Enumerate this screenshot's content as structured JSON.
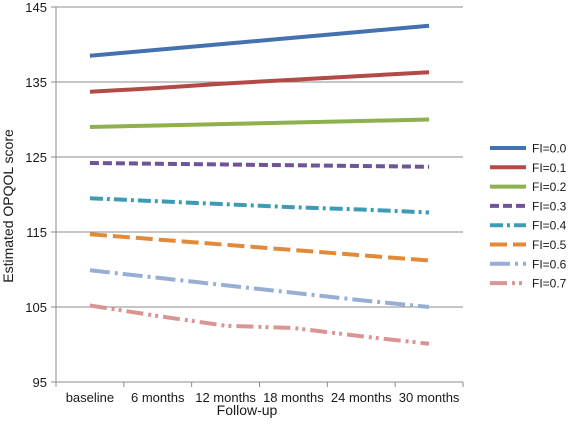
{
  "chart_data": {
    "type": "line",
    "title": "",
    "xlabel": "Follow-up",
    "ylabel": "Estimated OPQOL score",
    "categories": [
      "baseline",
      "6 months",
      "12 months",
      "18 months",
      "24 months",
      "30 months"
    ],
    "ylim": [
      95,
      145
    ],
    "yticks": [
      95,
      105,
      115,
      125,
      135,
      145
    ],
    "grid": true,
    "legend_position": "right",
    "series": [
      {
        "name": "FI=0.0",
        "color": "#4472b0",
        "dash": "solid",
        "values": [
          138.5,
          139.3,
          140.1,
          140.9,
          141.7,
          142.5
        ]
      },
      {
        "name": "FI=0.1",
        "color": "#b24a46",
        "dash": "solid",
        "values": [
          133.7,
          134.2,
          134.8,
          135.3,
          135.8,
          136.3
        ]
      },
      {
        "name": "FI=0.2",
        "color": "#8fb04f",
        "dash": "solid",
        "values": [
          129.0,
          129.2,
          129.4,
          129.6,
          129.8,
          130.0
        ]
      },
      {
        "name": "FI=0.3",
        "color": "#6e5597",
        "dash": "dash",
        "values": [
          124.2,
          124.1,
          124.0,
          123.9,
          123.8,
          123.7
        ]
      },
      {
        "name": "FI=0.4",
        "color": "#3d9bb3",
        "dash": "dashdot",
        "values": [
          119.5,
          119.1,
          118.7,
          118.3,
          118.0,
          117.6
        ]
      },
      {
        "name": "FI=0.5",
        "color": "#e38a3a",
        "dash": "longdash",
        "values": [
          114.7,
          114.0,
          113.3,
          112.6,
          111.9,
          111.2
        ]
      },
      {
        "name": "FI=0.6",
        "color": "#98aed4",
        "dash": "longdashdot",
        "values": [
          109.9,
          108.9,
          107.9,
          106.9,
          105.9,
          105.0
        ]
      },
      {
        "name": "FI=0.7",
        "color": "#d99594",
        "dash": "longdashdotdot",
        "values": [
          105.2,
          103.8,
          102.5,
          102.2,
          101.1,
          100.1
        ]
      }
    ]
  }
}
